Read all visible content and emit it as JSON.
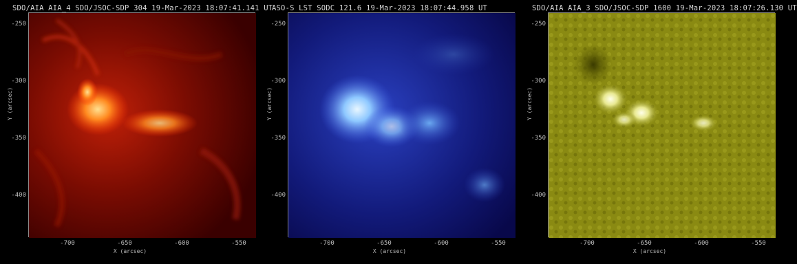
{
  "panels": [
    {
      "title": "SDO/AIA AIA_4 SDO/JSOC-SDP 304 19-Mar-2023 18:07:41.141 UT",
      "ylabel": "Y (arcsec)",
      "xlabel": "X (arcsec)",
      "yticks": [
        "-250",
        "-300",
        "-350",
        "-400"
      ],
      "xticks": [
        "-700",
        "-650",
        "-600",
        "-550"
      ],
      "colors": {
        "base": "#4a0000",
        "mid": "#b01a05",
        "bright": "#ffd070"
      }
    },
    {
      "title": "ASO-S LST SODC 121.6 19-Mar-2023 18:07:44.958 UT",
      "ylabel": "Y (arcsec)",
      "xlabel": "X (arcsec)",
      "yticks": [
        "-250",
        "-300",
        "-350",
        "-400"
      ],
      "xticks": [
        "-700",
        "-650",
        "-600",
        "-550"
      ],
      "colors": {
        "base": "#0c0c55",
        "mid": "#2f3cc8",
        "bright": "#d8f0ff"
      }
    },
    {
      "title": "SDO/AIA AIA_3 SDO/JSOC-SDP 1600 19-Mar-2023 18:07:26.130 UT",
      "ylabel": "Y (arcsec)",
      "xlabel": "X (arcsec)",
      "yticks": [
        "-250",
        "-300",
        "-350",
        "-400"
      ],
      "xticks": [
        "-700",
        "-650",
        "-600",
        "-550"
      ],
      "colors": {
        "base": "#5a5a00",
        "mid": "#8f8f10",
        "bright": "#ffffe0"
      }
    }
  ]
}
